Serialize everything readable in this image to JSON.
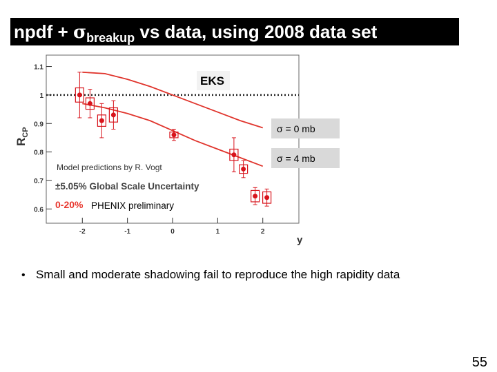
{
  "slide": {
    "title": {
      "before": "npdf + ",
      "symbol": "σ",
      "sub": "breakup",
      "after": " vs data, using 2008 data set"
    },
    "bullet": "Small and moderate shadowing fail to reproduce the high rapidity data",
    "page_number": 55
  },
  "chart_data": {
    "type": "scatter",
    "xlabel": "y",
    "ylabel": {
      "main": "R",
      "sub": "CP"
    },
    "xlim": [
      -2.8,
      2.8
    ],
    "ylim": [
      0.55,
      1.14
    ],
    "xticks": [
      -2,
      -1,
      0,
      1,
      2
    ],
    "yticks": [
      1.1,
      1,
      0.9,
      0.8,
      0.7,
      0.6
    ],
    "grid": false,
    "reference_line": 1,
    "annotations": [
      "EKS",
      "Model predictions by R. Vogt",
      "±5.05% Global Scale Uncertainty",
      "0-20%",
      "PHENIX preliminary"
    ],
    "series": [
      {
        "name": "σ = 0 mb",
        "type": "line",
        "color": "#e0342c",
        "x": [
          -2,
          -1.5,
          -1,
          -0.5,
          0,
          0.5,
          1,
          1.5,
          2
        ],
        "values": [
          1.08,
          1.075,
          1.055,
          1.03,
          1.0,
          0.97,
          0.94,
          0.91,
          0.885
        ]
      },
      {
        "name": "σ = 4 mb",
        "type": "line",
        "color": "#e0342c",
        "x": [
          -2,
          -1.5,
          -1,
          -0.5,
          0,
          0.5,
          1,
          1.5,
          2
        ],
        "values": [
          0.97,
          0.955,
          0.935,
          0.91,
          0.875,
          0.84,
          0.81,
          0.78,
          0.75
        ]
      },
      {
        "type": "scatter",
        "color": "#d8141c",
        "x": [
          -2.06,
          -1.83,
          -1.57,
          -1.31,
          0.03,
          1.36,
          1.57,
          1.83,
          2.09
        ],
        "values": [
          1.0,
          0.97,
          0.91,
          0.93,
          0.86,
          0.79,
          0.74,
          0.645,
          0.64
        ],
        "errors": [
          0.08,
          0.05,
          0.06,
          0.05,
          0.02,
          0.06,
          0.03,
          0.03,
          0.03
        ],
        "sys_errors": [
          0.025,
          0.02,
          0.02,
          0.025,
          0.01,
          0.02,
          0.015,
          0.02,
          0.02
        ]
      }
    ]
  }
}
